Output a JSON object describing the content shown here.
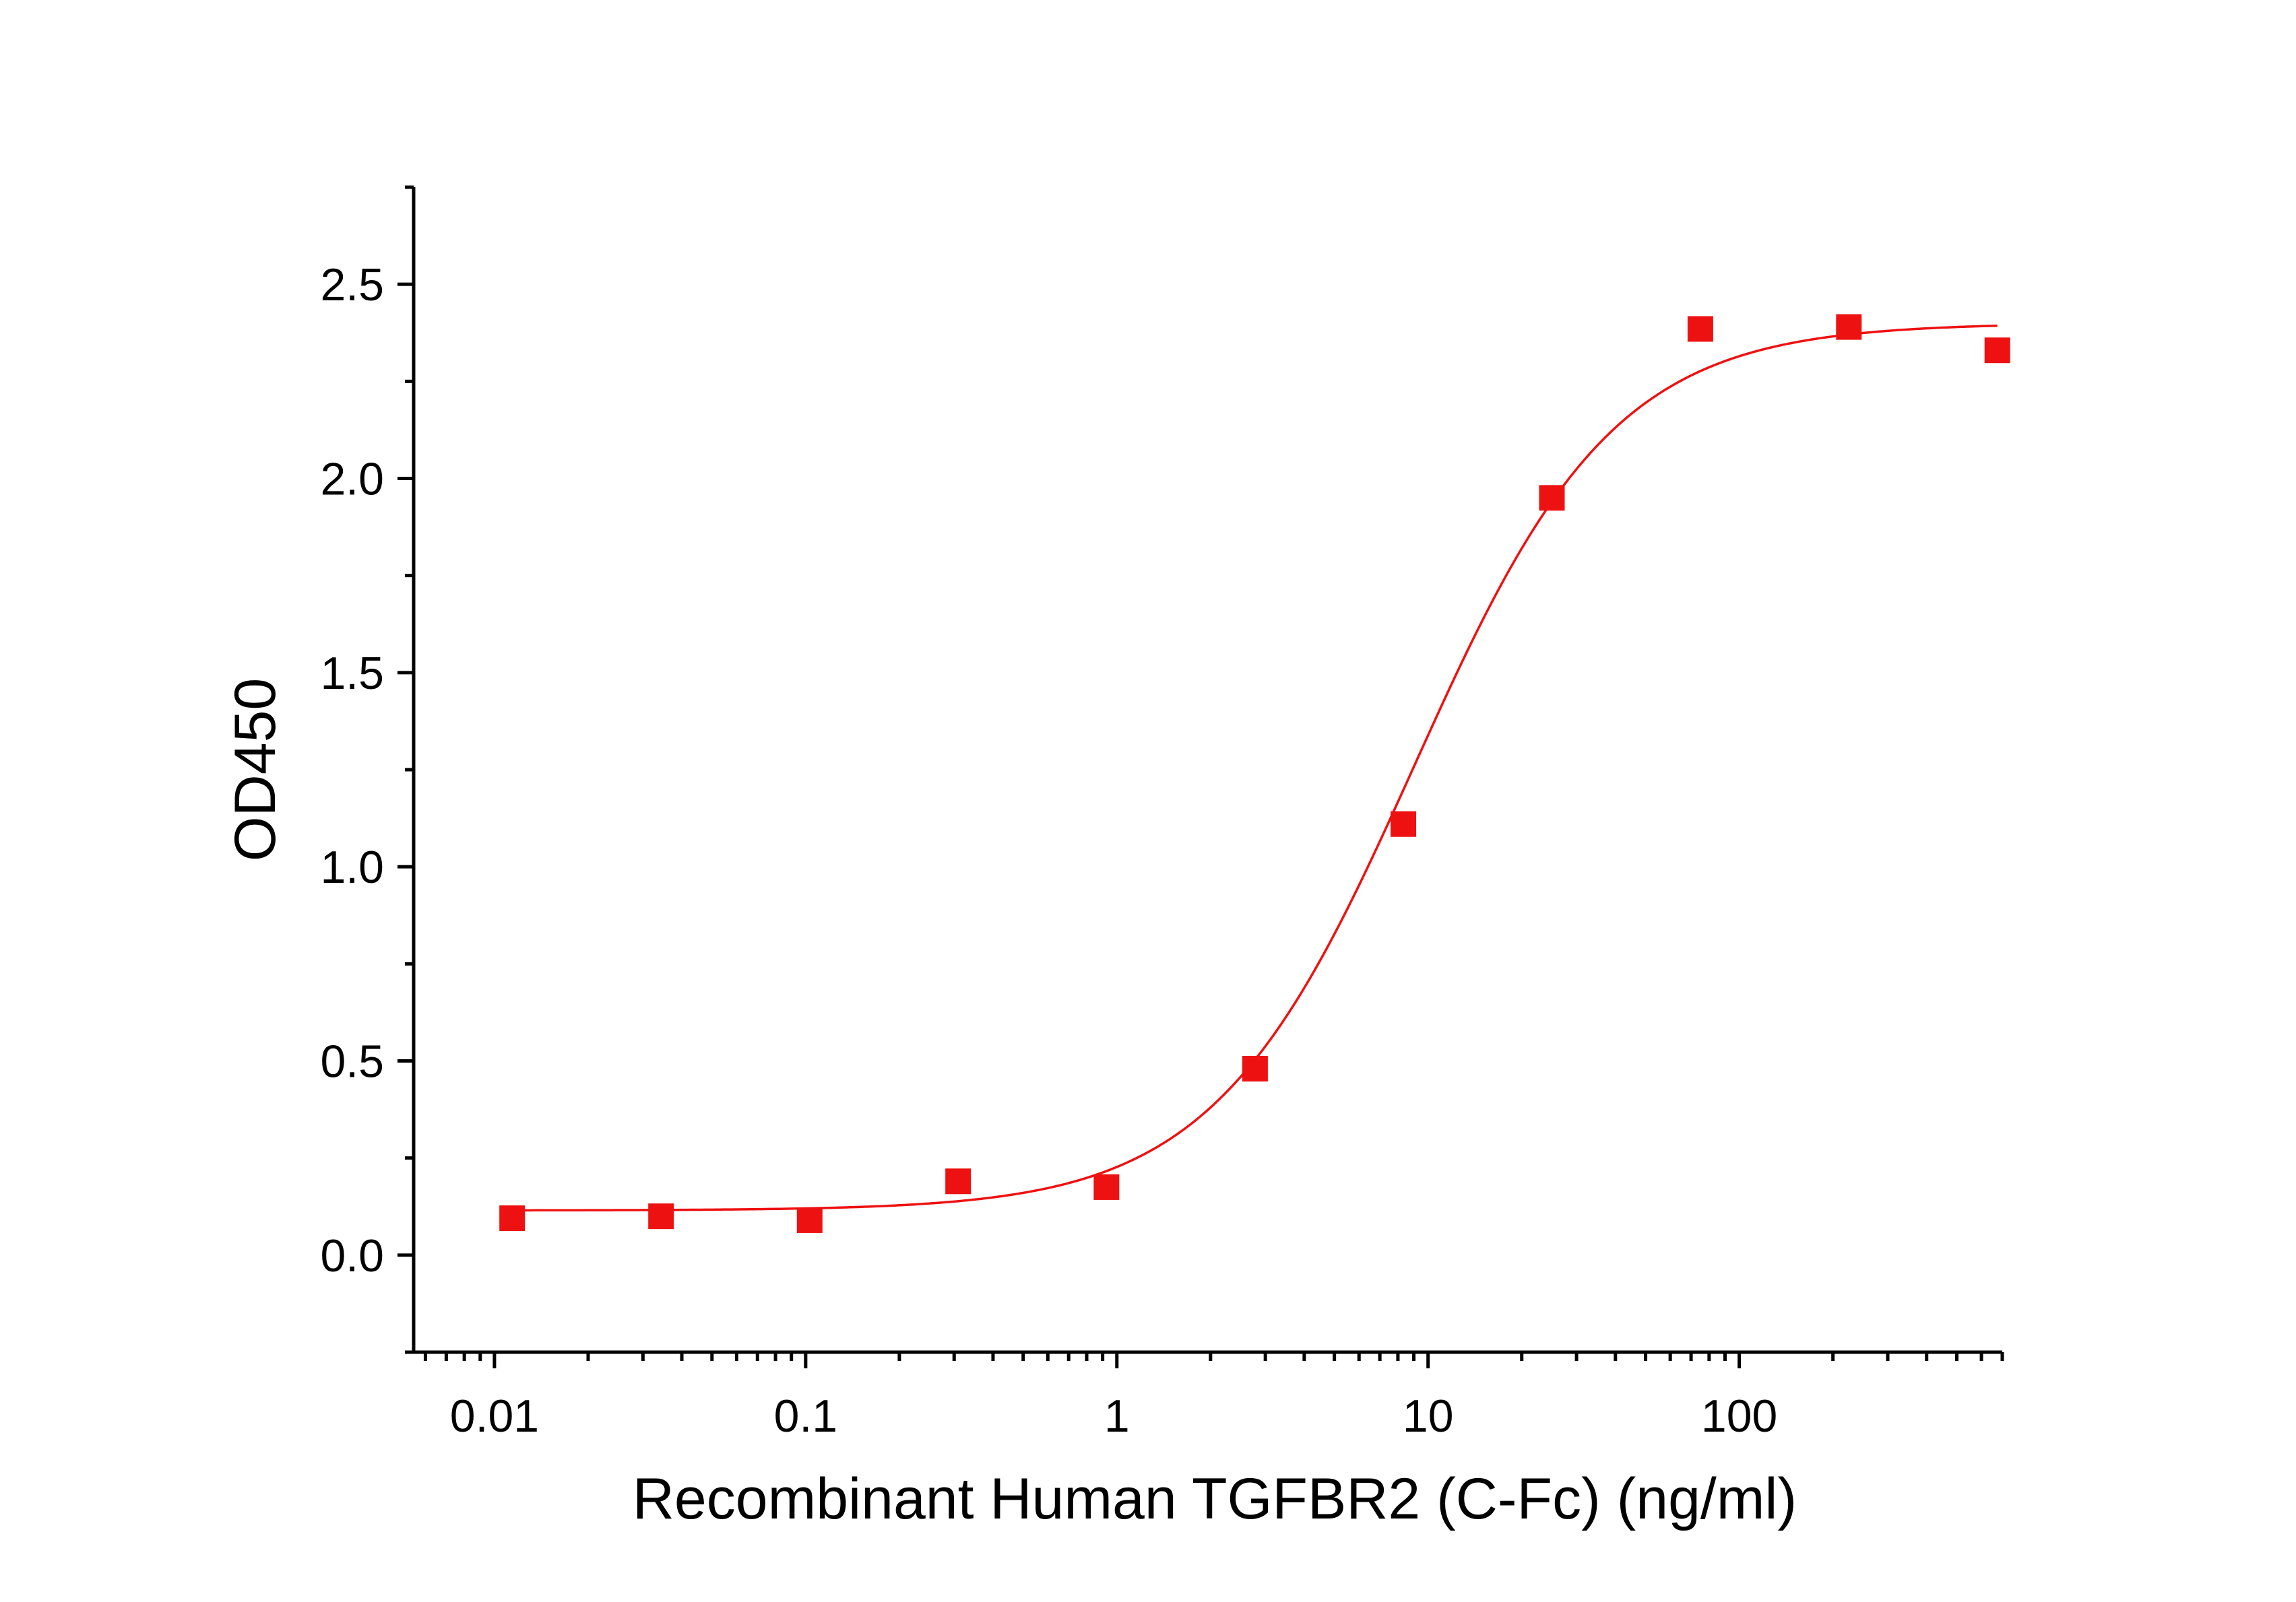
{
  "chart_data": {
    "type": "scatter",
    "xlabel": "Recombinant Human TGFBR2 (C-Fc) (ng/ml)",
    "ylabel": "OD450",
    "x_scale": "log",
    "xlim": [
      0.0055,
      700
    ],
    "ylim": [
      -0.25,
      2.75
    ],
    "x_ticks": [
      {
        "value": 0.01,
        "label": "0.01"
      },
      {
        "value": 0.1,
        "label": "0.1"
      },
      {
        "value": 1,
        "label": "1"
      },
      {
        "value": 10,
        "label": "10"
      },
      {
        "value": 100,
        "label": "100"
      }
    ],
    "y_ticks": [
      {
        "value": 0.0,
        "label": "0.0"
      },
      {
        "value": 0.5,
        "label": "0.5"
      },
      {
        "value": 1.0,
        "label": "1.0"
      },
      {
        "value": 1.5,
        "label": "1.5"
      },
      {
        "value": 2.0,
        "label": "2.0"
      },
      {
        "value": 2.5,
        "label": "2.5"
      }
    ],
    "grid": false,
    "legend": "none",
    "color": "#ee1111",
    "series": [
      {
        "marker": "square",
        "x": [
          0.0114,
          0.0343,
          0.103,
          0.309,
          0.926,
          2.78,
          8.33,
          25,
          75,
          225,
          675
        ],
        "y": [
          0.095,
          0.1,
          0.09,
          0.19,
          0.175,
          0.48,
          1.11,
          1.95,
          2.385,
          2.39,
          2.33
        ]
      }
    ],
    "fit": {
      "model": "four-parameter logistic",
      "bottom": 0.115,
      "top": 2.4,
      "ec50": 9.0,
      "hill": 1.35
    }
  }
}
